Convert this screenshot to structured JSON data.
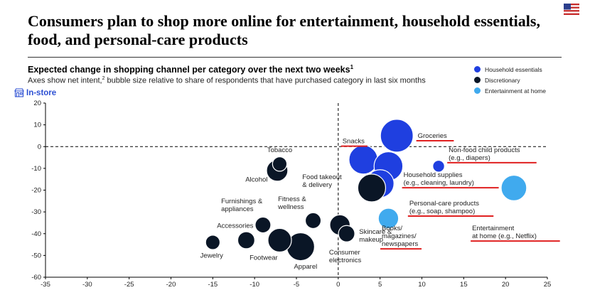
{
  "header": {
    "title": "Consumers plan to shop more online for entertainment, household essentials, food, and personal-care products",
    "subtitle": "Expected change in shopping channel per category over the next two weeks",
    "subtitle_sup": "1",
    "description_pre": "Axes show net intent,",
    "description_sup": "2",
    "description_post": " bubble size relative to share of respondents that have purchased category in last six months",
    "in_store_label": "In-store"
  },
  "legend": [
    {
      "label": "Household essentials",
      "color": "#1f3fe0"
    },
    {
      "label": "Discretionary",
      "color": "#0a1626"
    },
    {
      "label": "Entertainment at home",
      "color": "#40aaee"
    }
  ],
  "chart_data": {
    "type": "scatter",
    "xlim": [
      -35,
      25
    ],
    "ylim": [
      -60,
      20
    ],
    "xticks": [
      "-35",
      "-30",
      "-25",
      "-20",
      "-15",
      "-10",
      "-5",
      "0",
      "5",
      "10",
      "15",
      "20",
      "25"
    ],
    "yticks": [
      "20",
      "10",
      "0",
      "-10",
      "-20",
      "-30",
      "-40",
      "-50",
      "-60"
    ],
    "reference_lines": {
      "x": 0,
      "y": 0
    },
    "points": [
      {
        "id": "groceries",
        "group": "Household essentials",
        "x": 7,
        "y": 5,
        "size": 1.0
      },
      {
        "id": "snacks",
        "group": "Household essentials",
        "x": 3,
        "y": -6,
        "size": 0.88
      },
      {
        "id": "household-supplies",
        "group": "Household essentials",
        "x": 6,
        "y": -9,
        "size": 0.88
      },
      {
        "id": "personal-care",
        "group": "Household essentials",
        "x": 5,
        "y": -17,
        "size": 0.85
      },
      {
        "id": "non-food-child",
        "group": "Household essentials",
        "x": 12,
        "y": -9,
        "size": 0.36
      },
      {
        "id": "food-takeout",
        "group": "Discretionary",
        "x": 4,
        "y": -19,
        "size": 0.85
      },
      {
        "id": "tobacco",
        "group": "Discretionary",
        "x": -7,
        "y": -8,
        "size": 0.44
      },
      {
        "id": "alcohol",
        "group": "Discretionary",
        "x": -7.3,
        "y": -11,
        "size": 0.65
      },
      {
        "id": "furnishings",
        "group": "Discretionary",
        "x": -9,
        "y": -36,
        "size": 0.48
      },
      {
        "id": "fitness",
        "group": "Discretionary",
        "x": -3,
        "y": -34,
        "size": 0.48
      },
      {
        "id": "accessories",
        "group": "Discretionary",
        "x": -11,
        "y": -43,
        "size": 0.52
      },
      {
        "id": "jewelry",
        "group": "Discretionary",
        "x": -15,
        "y": -44,
        "size": 0.44
      },
      {
        "id": "footwear",
        "group": "Discretionary",
        "x": -7,
        "y": -43,
        "size": 0.72
      },
      {
        "id": "apparel",
        "group": "Discretionary",
        "x": -4.5,
        "y": -46,
        "size": 0.85
      },
      {
        "id": "skincare",
        "group": "Discretionary",
        "x": 0.2,
        "y": -36,
        "size": 0.62
      },
      {
        "id": "consumer-electronics",
        "group": "Discretionary",
        "x": 1,
        "y": -40,
        "size": 0.5
      },
      {
        "id": "books",
        "group": "Entertainment at home",
        "x": 6,
        "y": -33,
        "size": 0.62
      },
      {
        "id": "entertainment",
        "group": "Entertainment at home",
        "x": 21,
        "y": -19,
        "size": 0.78
      }
    ],
    "labels": [
      {
        "id": "groceries",
        "lines": [
          "Groceries"
        ],
        "x": 9.5,
        "y": 4,
        "underlined": true
      },
      {
        "id": "snacks",
        "lines": [
          "Snacks"
        ],
        "x": 0.5,
        "y": 1.5,
        "underlined": true
      },
      {
        "id": "non-food-child",
        "lines": [
          "Non-food child products",
          "(e.g., diapers)"
        ],
        "x": 13.2,
        "y": -2.5,
        "underlined": true
      },
      {
        "id": "household-supplies",
        "lines": [
          "Household supplies",
          "(e.g., cleaning, laundry)"
        ],
        "x": 7.8,
        "y": -14,
        "underlined": true
      },
      {
        "id": "personal-care",
        "lines": [
          "Personal-care products",
          "(e.g., soap, shampoo)"
        ],
        "x": 8.5,
        "y": -27,
        "underlined": true
      },
      {
        "id": "food-takeout",
        "lines": [
          "Food takeout",
          "& delivery"
        ],
        "x": -4.3,
        "y": -15,
        "underlined": false
      },
      {
        "id": "tobacco",
        "lines": [
          "Tobacco"
        ],
        "x": -8.5,
        "y": -2.5,
        "underlined": false
      },
      {
        "id": "alcohol",
        "lines": [
          "Alcohol"
        ],
        "x": -11.1,
        "y": -16,
        "underlined": false
      },
      {
        "id": "furnishings",
        "lines": [
          "Furnishings &",
          "appliances"
        ],
        "x": -14,
        "y": -26,
        "underlined": false
      },
      {
        "id": "fitness",
        "lines": [
          "Fitness &",
          "wellness"
        ],
        "x": -7.2,
        "y": -25,
        "underlined": false
      },
      {
        "id": "accessories",
        "lines": [
          "Accessories"
        ],
        "x": -14.5,
        "y": -37.3,
        "underlined": false
      },
      {
        "id": "jewelry",
        "lines": [
          "Jewelry"
        ],
        "x": -16.5,
        "y": -51,
        "underlined": false
      },
      {
        "id": "footwear",
        "lines": [
          "Footwear"
        ],
        "x": -10.6,
        "y": -52,
        "underlined": false
      },
      {
        "id": "apparel",
        "lines": [
          "Apparel"
        ],
        "x": -5.3,
        "y": -56,
        "underlined": false
      },
      {
        "id": "skincare",
        "lines": [
          "Skincare &",
          "makeup"
        ],
        "x": 2.5,
        "y": -40,
        "underlined": false
      },
      {
        "id": "consumer-electronics",
        "lines": [
          "Consumer",
          "electronics"
        ],
        "x": -1.1,
        "y": -49.5,
        "underlined": false
      },
      {
        "id": "books",
        "lines": [
          "Books/",
          "magazines/",
          "newspapers"
        ],
        "x": 5.2,
        "y": -38.5,
        "underlined": true
      },
      {
        "id": "entertainment",
        "lines": [
          "Entertainment",
          "at home (e.g., Netflix)"
        ],
        "x": 16,
        "y": -38.5,
        "underlined": true
      }
    ]
  }
}
